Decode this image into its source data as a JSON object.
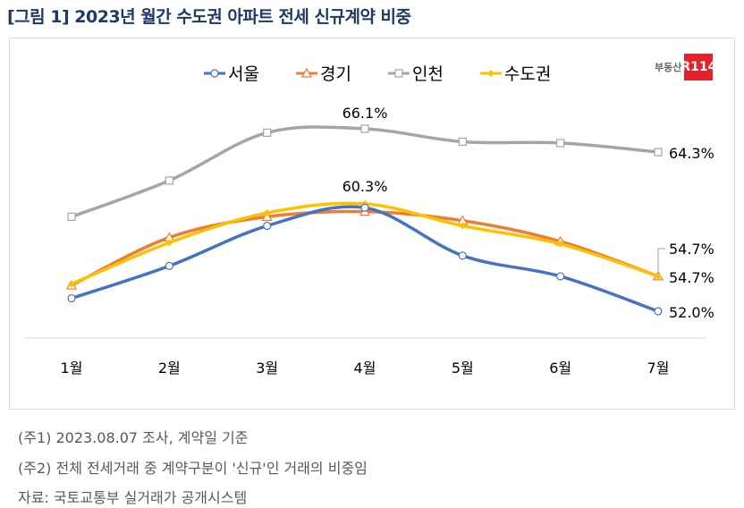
{
  "title": "[그림 1] 2023년 월간 수도권 아파트 전세 신규계약 비중",
  "logo": {
    "text": "부동산",
    "mark": "R114"
  },
  "chart_data": {
    "type": "line",
    "categories": [
      "1월",
      "2월",
      "3월",
      "4월",
      "5월",
      "6월",
      "7월"
    ],
    "series": [
      {
        "name": "서울",
        "color": "#4472c4",
        "marker": "circle",
        "values": [
          53.0,
          55.5,
          58.6,
          60.0,
          56.3,
          54.7,
          52.0
        ]
      },
      {
        "name": "경기",
        "color": "#ed7d31",
        "marker": "triangle",
        "values": [
          54.0,
          57.7,
          59.3,
          59.7,
          59.0,
          57.4,
          54.7
        ]
      },
      {
        "name": "인천",
        "color": "#a5a5a5",
        "marker": "square",
        "values": [
          59.3,
          62.1,
          65.8,
          66.1,
          65.1,
          65.0,
          64.3
        ]
      },
      {
        "name": "수도권",
        "color": "#ffc000",
        "marker": "diamond",
        "values": [
          54.1,
          57.3,
          59.6,
          60.3,
          58.6,
          57.2,
          54.7
        ]
      }
    ],
    "data_labels": [
      {
        "series": "인천",
        "category": "4월",
        "text": "66.1%"
      },
      {
        "series": "인천",
        "category": "7월",
        "text": "64.3%"
      },
      {
        "series": "수도권",
        "category": "4월",
        "text": "60.3%"
      },
      {
        "series": "경기",
        "category": "7월",
        "text": "54.7%"
      },
      {
        "series": "수도권",
        "category": "7월",
        "text": "54.7%"
      },
      {
        "series": "서울",
        "category": "7월",
        "text": "52.0%"
      }
    ],
    "legend": "top",
    "grid": false
  },
  "notes": [
    "(주1) 2023.08.07 조사, 계약일 기준",
    "(주2) 전체 전세거래 중 계약구분이 '신규'인 거래의 비중임",
    "자료: 국토교통부 실거래가 공개시스템"
  ]
}
